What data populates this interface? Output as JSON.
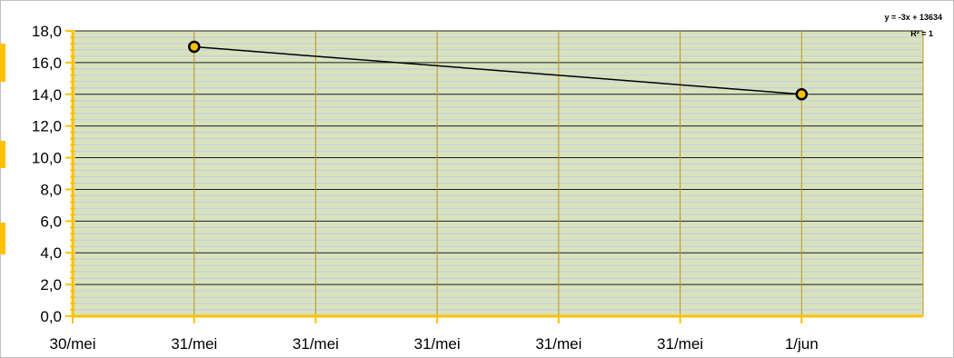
{
  "chart_data": {
    "type": "line",
    "x_categories": [
      "30/mei",
      "31/mei",
      "31/mei",
      "31/mei",
      "31/mei",
      "31/mei",
      "1/jun"
    ],
    "yticks": [
      "0,0",
      "2,0",
      "4,0",
      "6,0",
      "8,0",
      "10,0",
      "12,0",
      "14,0",
      "16,0",
      "18,0"
    ],
    "ylim": [
      0,
      18
    ],
    "series": [
      {
        "x_index": [
          1,
          6
        ],
        "values": [
          17,
          14
        ]
      }
    ],
    "trendline": {
      "equation": "y = -3x + 13634",
      "r2": "R² = 1"
    },
    "grid": true,
    "minor_grid": true
  },
  "colors": {
    "plot_bg": "#d8e2bd",
    "minor_grid": "#c3cbe3",
    "major_grid": "#1f1f1f",
    "vertical_grid": "#b8961c",
    "axis": "#ffc000",
    "line": "#000000",
    "marker_fill": "#ffc000",
    "marker_stroke": "#000000",
    "side_marks": "#ffc000"
  }
}
